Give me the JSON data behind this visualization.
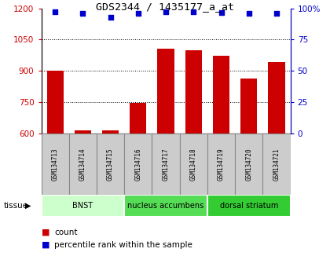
{
  "title": "GDS2344 / 1435177_a_at",
  "samples": [
    "GSM134713",
    "GSM134714",
    "GSM134715",
    "GSM134716",
    "GSM134717",
    "GSM134718",
    "GSM134719",
    "GSM134720",
    "GSM134721"
  ],
  "counts": [
    900,
    615,
    615,
    745,
    1005,
    998,
    972,
    865,
    942
  ],
  "percentiles": [
    97,
    96,
    93,
    96,
    97.5,
    97.5,
    96.5,
    96,
    96
  ],
  "bar_color": "#cc0000",
  "dot_color": "#0000cc",
  "ylim_left": [
    600,
    1200
  ],
  "ylim_right": [
    0,
    100
  ],
  "yticks_left": [
    600,
    750,
    900,
    1050,
    1200
  ],
  "yticks_right": [
    0,
    25,
    50,
    75,
    100
  ],
  "groups": [
    {
      "label": "BNST",
      "start": 0,
      "end": 3,
      "color": "#ccffcc"
    },
    {
      "label": "nucleus accumbens",
      "start": 3,
      "end": 6,
      "color": "#55dd55"
    },
    {
      "label": "dorsal striatum",
      "start": 6,
      "end": 9,
      "color": "#33cc33"
    }
  ],
  "tissue_label": "tissue",
  "legend_count_label": "count",
  "legend_pct_label": "percentile rank within the sample",
  "bar_bottom": 600,
  "yticklabel_left_color": "#cc0000",
  "yticklabel_right_color": "#0000cc",
  "sample_box_color": "#cccccc",
  "sample_box_edge": "#888888"
}
